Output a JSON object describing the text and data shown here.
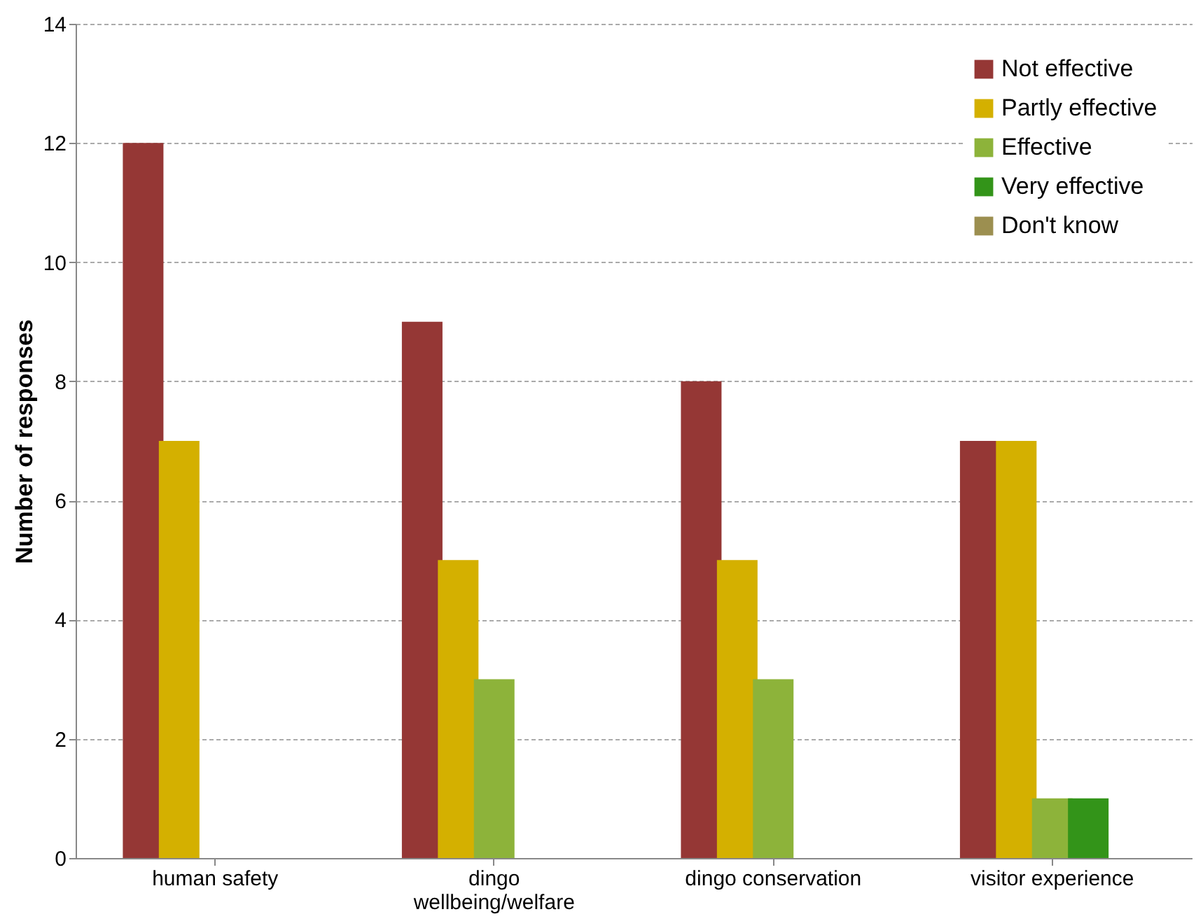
{
  "chart_data": {
    "type": "bar",
    "ylabel": "Number of responses",
    "categories": [
      "human safety",
      "dingo\nwellbeing/welfare",
      "dingo conservation",
      "visitor experience"
    ],
    "series": [
      {
        "name": "Not effective",
        "color": "#953735",
        "values": [
          12,
          9,
          8,
          7
        ]
      },
      {
        "name": "Partly effective",
        "color": "#d4b000",
        "values": [
          7,
          5,
          5,
          7
        ]
      },
      {
        "name": "Effective",
        "color": "#8db33a",
        "values": [
          0,
          3,
          3,
          1
        ]
      },
      {
        "name": "Very effective",
        "color": "#339419",
        "values": [
          0,
          0,
          0,
          1
        ]
      },
      {
        "name": "Don't know",
        "color": "#9c8f50",
        "values": [
          0,
          0,
          0,
          0
        ]
      }
    ],
    "ylim": [
      0,
      14
    ],
    "yticks": [
      0,
      2,
      4,
      6,
      8,
      10,
      12,
      14
    ],
    "grid": "y",
    "legend": "top right"
  }
}
